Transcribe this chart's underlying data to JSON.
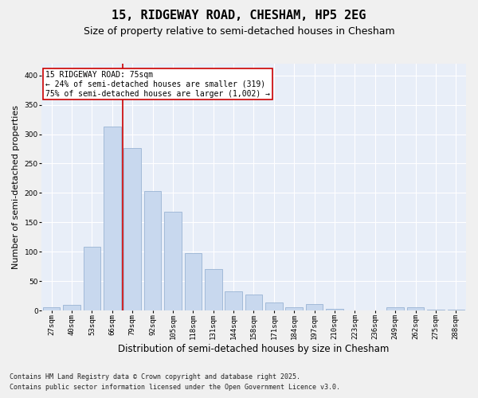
{
  "title1": "15, RIDGEWAY ROAD, CHESHAM, HP5 2EG",
  "title2": "Size of property relative to semi-detached houses in Chesham",
  "xlabel": "Distribution of semi-detached houses by size in Chesham",
  "ylabel": "Number of semi-detached properties",
  "categories": [
    "27sqm",
    "40sqm",
    "53sqm",
    "66sqm",
    "79sqm",
    "92sqm",
    "105sqm",
    "118sqm",
    "131sqm",
    "144sqm",
    "158sqm",
    "171sqm",
    "184sqm",
    "197sqm",
    "210sqm",
    "223sqm",
    "236sqm",
    "249sqm",
    "262sqm",
    "275sqm",
    "288sqm"
  ],
  "values": [
    5,
    10,
    108,
    313,
    277,
    203,
    168,
    97,
    70,
    32,
    27,
    13,
    5,
    11,
    3,
    0,
    0,
    5,
    6,
    1,
    1
  ],
  "bar_color": "#c8d8ee",
  "bar_edge_color": "#9ab4d4",
  "vline_color": "#cc0000",
  "vline_pos": 3.5,
  "annotation_title": "15 RIDGEWAY ROAD: 75sqm",
  "annotation_line1": "← 24% of semi-detached houses are smaller (319)",
  "annotation_line2": "75% of semi-detached houses are larger (1,002) →",
  "annotation_box_color": "#cc0000",
  "annotation_bg": "#ffffff",
  "ylim": [
    0,
    420
  ],
  "yticks": [
    0,
    50,
    100,
    150,
    200,
    250,
    300,
    350,
    400
  ],
  "footnote1": "Contains HM Land Registry data © Crown copyright and database right 2025.",
  "footnote2": "Contains public sector information licensed under the Open Government Licence v3.0.",
  "fig_bg_color": "#f0f0f0",
  "plot_bg_color": "#e8eef8",
  "title1_fontsize": 11,
  "title2_fontsize": 9,
  "tick_fontsize": 6.5,
  "ylabel_fontsize": 8,
  "xlabel_fontsize": 8.5,
  "footnote_fontsize": 6,
  "annotation_fontsize": 7
}
